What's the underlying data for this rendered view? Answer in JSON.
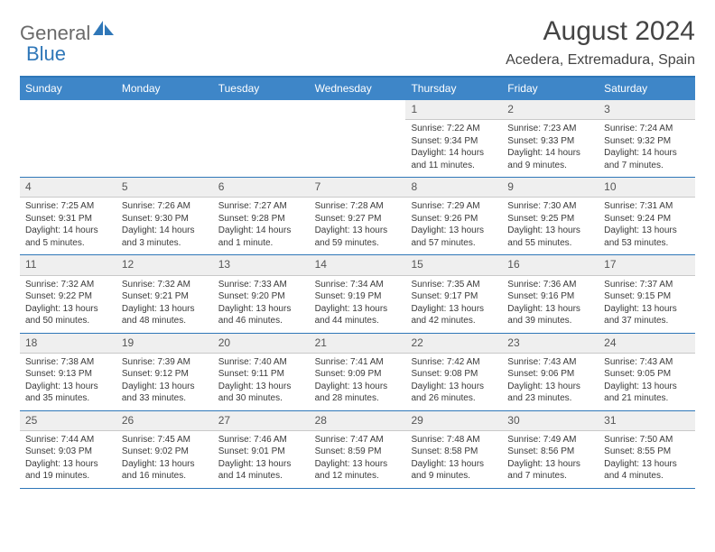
{
  "brand": {
    "part1": "General",
    "part2": "Blue"
  },
  "title": "August 2024",
  "location": "Acedera, Extremadura, Spain",
  "colors": {
    "header_bg": "#3e86c8",
    "rule": "#2f77b8",
    "daybar": "#efefef",
    "text": "#3a3a3a"
  },
  "weekdays": [
    "Sunday",
    "Monday",
    "Tuesday",
    "Wednesday",
    "Thursday",
    "Friday",
    "Saturday"
  ],
  "weeks": [
    [
      null,
      null,
      null,
      null,
      {
        "n": "1",
        "r": "Sunrise: 7:22 AM",
        "s": "Sunset: 9:34 PM",
        "d1": "Daylight: 14 hours",
        "d2": "and 11 minutes."
      },
      {
        "n": "2",
        "r": "Sunrise: 7:23 AM",
        "s": "Sunset: 9:33 PM",
        "d1": "Daylight: 14 hours",
        "d2": "and 9 minutes."
      },
      {
        "n": "3",
        "r": "Sunrise: 7:24 AM",
        "s": "Sunset: 9:32 PM",
        "d1": "Daylight: 14 hours",
        "d2": "and 7 minutes."
      }
    ],
    [
      {
        "n": "4",
        "r": "Sunrise: 7:25 AM",
        "s": "Sunset: 9:31 PM",
        "d1": "Daylight: 14 hours",
        "d2": "and 5 minutes."
      },
      {
        "n": "5",
        "r": "Sunrise: 7:26 AM",
        "s": "Sunset: 9:30 PM",
        "d1": "Daylight: 14 hours",
        "d2": "and 3 minutes."
      },
      {
        "n": "6",
        "r": "Sunrise: 7:27 AM",
        "s": "Sunset: 9:28 PM",
        "d1": "Daylight: 14 hours",
        "d2": "and 1 minute."
      },
      {
        "n": "7",
        "r": "Sunrise: 7:28 AM",
        "s": "Sunset: 9:27 PM",
        "d1": "Daylight: 13 hours",
        "d2": "and 59 minutes."
      },
      {
        "n": "8",
        "r": "Sunrise: 7:29 AM",
        "s": "Sunset: 9:26 PM",
        "d1": "Daylight: 13 hours",
        "d2": "and 57 minutes."
      },
      {
        "n": "9",
        "r": "Sunrise: 7:30 AM",
        "s": "Sunset: 9:25 PM",
        "d1": "Daylight: 13 hours",
        "d2": "and 55 minutes."
      },
      {
        "n": "10",
        "r": "Sunrise: 7:31 AM",
        "s": "Sunset: 9:24 PM",
        "d1": "Daylight: 13 hours",
        "d2": "and 53 minutes."
      }
    ],
    [
      {
        "n": "11",
        "r": "Sunrise: 7:32 AM",
        "s": "Sunset: 9:22 PM",
        "d1": "Daylight: 13 hours",
        "d2": "and 50 minutes."
      },
      {
        "n": "12",
        "r": "Sunrise: 7:32 AM",
        "s": "Sunset: 9:21 PM",
        "d1": "Daylight: 13 hours",
        "d2": "and 48 minutes."
      },
      {
        "n": "13",
        "r": "Sunrise: 7:33 AM",
        "s": "Sunset: 9:20 PM",
        "d1": "Daylight: 13 hours",
        "d2": "and 46 minutes."
      },
      {
        "n": "14",
        "r": "Sunrise: 7:34 AM",
        "s": "Sunset: 9:19 PM",
        "d1": "Daylight: 13 hours",
        "d2": "and 44 minutes."
      },
      {
        "n": "15",
        "r": "Sunrise: 7:35 AM",
        "s": "Sunset: 9:17 PM",
        "d1": "Daylight: 13 hours",
        "d2": "and 42 minutes."
      },
      {
        "n": "16",
        "r": "Sunrise: 7:36 AM",
        "s": "Sunset: 9:16 PM",
        "d1": "Daylight: 13 hours",
        "d2": "and 39 minutes."
      },
      {
        "n": "17",
        "r": "Sunrise: 7:37 AM",
        "s": "Sunset: 9:15 PM",
        "d1": "Daylight: 13 hours",
        "d2": "and 37 minutes."
      }
    ],
    [
      {
        "n": "18",
        "r": "Sunrise: 7:38 AM",
        "s": "Sunset: 9:13 PM",
        "d1": "Daylight: 13 hours",
        "d2": "and 35 minutes."
      },
      {
        "n": "19",
        "r": "Sunrise: 7:39 AM",
        "s": "Sunset: 9:12 PM",
        "d1": "Daylight: 13 hours",
        "d2": "and 33 minutes."
      },
      {
        "n": "20",
        "r": "Sunrise: 7:40 AM",
        "s": "Sunset: 9:11 PM",
        "d1": "Daylight: 13 hours",
        "d2": "and 30 minutes."
      },
      {
        "n": "21",
        "r": "Sunrise: 7:41 AM",
        "s": "Sunset: 9:09 PM",
        "d1": "Daylight: 13 hours",
        "d2": "and 28 minutes."
      },
      {
        "n": "22",
        "r": "Sunrise: 7:42 AM",
        "s": "Sunset: 9:08 PM",
        "d1": "Daylight: 13 hours",
        "d2": "and 26 minutes."
      },
      {
        "n": "23",
        "r": "Sunrise: 7:43 AM",
        "s": "Sunset: 9:06 PM",
        "d1": "Daylight: 13 hours",
        "d2": "and 23 minutes."
      },
      {
        "n": "24",
        "r": "Sunrise: 7:43 AM",
        "s": "Sunset: 9:05 PM",
        "d1": "Daylight: 13 hours",
        "d2": "and 21 minutes."
      }
    ],
    [
      {
        "n": "25",
        "r": "Sunrise: 7:44 AM",
        "s": "Sunset: 9:03 PM",
        "d1": "Daylight: 13 hours",
        "d2": "and 19 minutes."
      },
      {
        "n": "26",
        "r": "Sunrise: 7:45 AM",
        "s": "Sunset: 9:02 PM",
        "d1": "Daylight: 13 hours",
        "d2": "and 16 minutes."
      },
      {
        "n": "27",
        "r": "Sunrise: 7:46 AM",
        "s": "Sunset: 9:01 PM",
        "d1": "Daylight: 13 hours",
        "d2": "and 14 minutes."
      },
      {
        "n": "28",
        "r": "Sunrise: 7:47 AM",
        "s": "Sunset: 8:59 PM",
        "d1": "Daylight: 13 hours",
        "d2": "and 12 minutes."
      },
      {
        "n": "29",
        "r": "Sunrise: 7:48 AM",
        "s": "Sunset: 8:58 PM",
        "d1": "Daylight: 13 hours",
        "d2": "and 9 minutes."
      },
      {
        "n": "30",
        "r": "Sunrise: 7:49 AM",
        "s": "Sunset: 8:56 PM",
        "d1": "Daylight: 13 hours",
        "d2": "and 7 minutes."
      },
      {
        "n": "31",
        "r": "Sunrise: 7:50 AM",
        "s": "Sunset: 8:55 PM",
        "d1": "Daylight: 13 hours",
        "d2": "and 4 minutes."
      }
    ]
  ]
}
